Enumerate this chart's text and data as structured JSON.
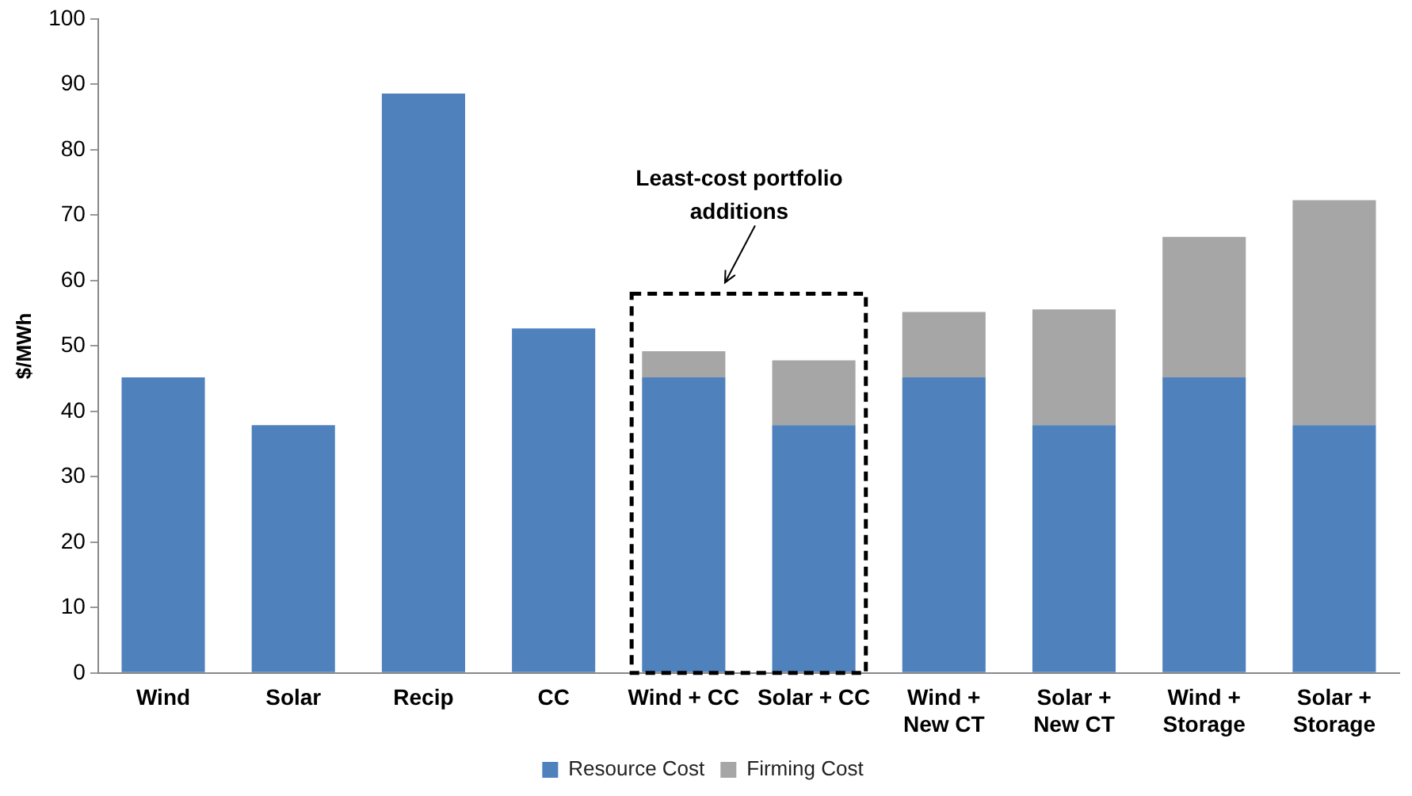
{
  "chart_data": {
    "type": "bar",
    "stacked": true,
    "ylabel": "$/MWh",
    "categories": [
      "Wind",
      "Solar",
      "Recip",
      "CC",
      "Wind + CC",
      "Solar + CC",
      "Wind +\nNew CT",
      "Solar +\nNew CT",
      "Wind +\nStorage",
      "Solar +\nStorage"
    ],
    "series": [
      {
        "name": "Resource Cost",
        "color": "#4f81bd",
        "values": [
          45.2,
          37.9,
          88.6,
          52.7,
          45.2,
          37.9,
          45.2,
          37.9,
          45.2,
          37.9
        ]
      },
      {
        "name": "Firming Cost",
        "color": "#a6a6a6",
        "values": [
          null,
          null,
          null,
          null,
          4,
          9.9,
          10,
          17.7,
          21.5,
          34.4
        ]
      }
    ],
    "ylim": [
      0,
      100
    ],
    "yticks": [
      0,
      10,
      20,
      30,
      40,
      50,
      60,
      70,
      80,
      90,
      100
    ],
    "grid": false,
    "legend": "bottom",
    "annotations": [
      "Least-cost portfolio additions"
    ]
  }
}
